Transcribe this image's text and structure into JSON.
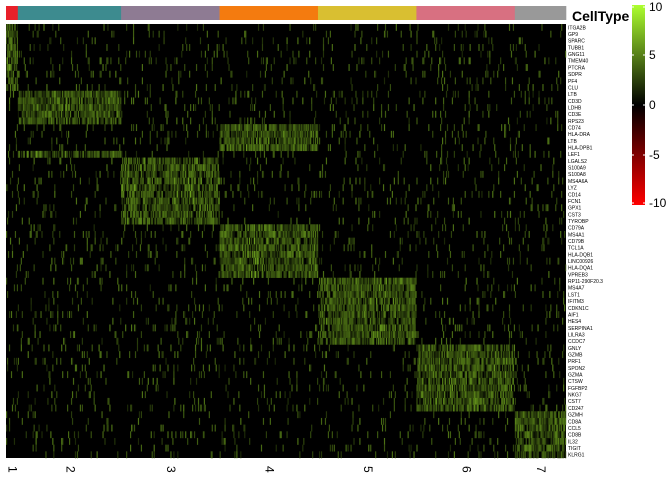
{
  "chart_data": {
    "type": "heatmap",
    "title": "",
    "xlabel": "",
    "ylabel": "",
    "annotation_title": "CellType",
    "clusters": [
      {
        "label": "1",
        "color": "#e8202a",
        "cells": 12,
        "group": 0
      },
      {
        "label": "2",
        "color": "#3d8b8f",
        "cells": 105,
        "group": 1
      },
      {
        "label": "3",
        "color": "#8e7b93",
        "cells": 100,
        "group": 2
      },
      {
        "label": "4",
        "color": "#f47b0f",
        "cells": 100,
        "group": 3
      },
      {
        "label": "5",
        "color": "#d9bf31",
        "cells": 100,
        "group": 4
      },
      {
        "label": "6",
        "color": "#d87081",
        "cells": 100,
        "group": 5
      },
      {
        "label": "7",
        "color": "#999999",
        "cells": 52,
        "group": 6
      }
    ],
    "genes": [
      {
        "name": "ITGA2B",
        "group": 0
      },
      {
        "name": "GP9",
        "group": 0
      },
      {
        "name": "SPARC",
        "group": 0
      },
      {
        "name": "TUBB1",
        "group": 0
      },
      {
        "name": "GNG11",
        "group": 0
      },
      {
        "name": "TMEM40",
        "group": 0
      },
      {
        "name": "PTCRA",
        "group": 0
      },
      {
        "name": "SDPR",
        "group": 0
      },
      {
        "name": "PF4",
        "group": 0
      },
      {
        "name": "CLU",
        "group": 0
      },
      {
        "name": "LTB",
        "group": 1
      },
      {
        "name": "CD3D",
        "group": 1
      },
      {
        "name": "LDHB",
        "group": 1
      },
      {
        "name": "CD3E",
        "group": 1
      },
      {
        "name": "RPS23",
        "group": 1
      },
      {
        "name": "CD74",
        "group": 3
      },
      {
        "name": "HLA-DRA",
        "group": 3
      },
      {
        "name": "LTB",
        "group": 3
      },
      {
        "name": "HLA-DPB1",
        "group": 3
      },
      {
        "name": "LEF1",
        "group": 1
      },
      {
        "name": "LGALS2",
        "group": 2
      },
      {
        "name": "S100A9",
        "group": 2
      },
      {
        "name": "S100A8",
        "group": 2
      },
      {
        "name": "MS4A6A",
        "group": 2
      },
      {
        "name": "LYZ",
        "group": 2
      },
      {
        "name": "CD14",
        "group": 2
      },
      {
        "name": "FCN1",
        "group": 2
      },
      {
        "name": "GPX1",
        "group": 2
      },
      {
        "name": "CST3",
        "group": 2
      },
      {
        "name": "TYROBP",
        "group": 2
      },
      {
        "name": "CD79A",
        "group": 3
      },
      {
        "name": "MS4A1",
        "group": 3
      },
      {
        "name": "CD79B",
        "group": 3
      },
      {
        "name": "TCL1A",
        "group": 3
      },
      {
        "name": "HLA-DQB1",
        "group": 3
      },
      {
        "name": "LINC00926",
        "group": 3
      },
      {
        "name": "HLA-DQA1",
        "group": 3
      },
      {
        "name": "VPREB3",
        "group": 3
      },
      {
        "name": "RP11-290F20.3",
        "group": 4
      },
      {
        "name": "MS4A7",
        "group": 4
      },
      {
        "name": "LST1",
        "group": 4
      },
      {
        "name": "IFITM3",
        "group": 4
      },
      {
        "name": "CDKN1C",
        "group": 4
      },
      {
        "name": "AIF1",
        "group": 4
      },
      {
        "name": "HES4",
        "group": 4
      },
      {
        "name": "SERPINA1",
        "group": 4
      },
      {
        "name": "LILRA3",
        "group": 4
      },
      {
        "name": "CCDC7",
        "group": 4
      },
      {
        "name": "GNLY",
        "group": 5
      },
      {
        "name": "GZMB",
        "group": 5
      },
      {
        "name": "PRF1",
        "group": 5
      },
      {
        "name": "SPON2",
        "group": 5
      },
      {
        "name": "GZMA",
        "group": 5
      },
      {
        "name": "CTSW",
        "group": 5
      },
      {
        "name": "FGFBP2",
        "group": 5
      },
      {
        "name": "NKG7",
        "group": 5
      },
      {
        "name": "CST7",
        "group": 5
      },
      {
        "name": "CD247",
        "group": 5
      },
      {
        "name": "GZMH",
        "group": 6
      },
      {
        "name": "CD8A",
        "group": 6
      },
      {
        "name": "CCL5",
        "group": 6
      },
      {
        "name": "CD8B",
        "group": 6
      },
      {
        "name": "IL32",
        "group": 6
      },
      {
        "name": "TIGIT",
        "group": 6
      },
      {
        "name": "KLRG1",
        "group": 6
      }
    ],
    "colorscale": {
      "min": -10,
      "max": 10,
      "stops": [
        {
          "value": -10,
          "color": "#ff0000"
        },
        {
          "value": 0,
          "color": "#000000"
        },
        {
          "value": 10,
          "color": "#adff2f"
        }
      ],
      "ticks": [
        10,
        5,
        0,
        -5,
        -10
      ],
      "tick_labels": [
        "10",
        "5",
        "0",
        "-5",
        "-10"
      ]
    },
    "expression_model": {
      "marker_mean": 3.2,
      "background_mean": 0.15,
      "noise": 1.2,
      "dropout": 0.45
    }
  }
}
